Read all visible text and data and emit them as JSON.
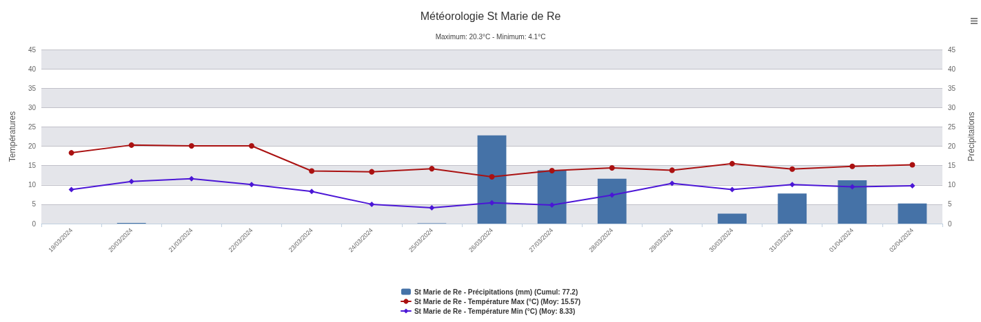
{
  "chart_data": {
    "type": "line",
    "title": "Météorologie St Marie de Re",
    "subtitle": "Maximum: 20.3°C - Minimum: 4.1°C",
    "ylabel": "Températures",
    "y2label": "Précipitations",
    "categories": [
      "19/03/2024",
      "20/03/2024",
      "21/03/2024",
      "22/03/2024",
      "23/03/2024",
      "24/03/2024",
      "25/03/2024",
      "26/03/2024",
      "27/03/2024",
      "28/03/2024",
      "29/03/2024",
      "30/03/2024",
      "31/03/2024",
      "01/04/2024",
      "02/04/2024"
    ],
    "series": [
      {
        "name": "St Marie de Re - Précipitations (mm) (Cumul: 77.2)",
        "type": "bar",
        "axis": "y2",
        "color": "#4572a7",
        "values": [
          0,
          0.2,
          0,
          0,
          0,
          0,
          0.1,
          22.8,
          13.8,
          11.6,
          0,
          2.6,
          7.8,
          11.2,
          5.2
        ]
      },
      {
        "name": "St Marie de Re - Température Max (°C) (Moy: 15.57)",
        "marker": "circle",
        "color": "#aa1111",
        "values": [
          18.3,
          20.3,
          20.1,
          20.1,
          13.6,
          13.4,
          14.2,
          12.1,
          13.7,
          14.4,
          13.8,
          15.5,
          14.1,
          14.8,
          15.2
        ]
      },
      {
        "name": "St Marie de Re - Température Min (°C) (Moy: 8.33)",
        "marker": "diamond",
        "color": "#4b16d6",
        "values": [
          8.8,
          10.9,
          11.6,
          10.1,
          8.3,
          5.0,
          4.1,
          5.4,
          4.8,
          7.4,
          10.4,
          8.8,
          10.1,
          9.5,
          9.8
        ]
      }
    ],
    "ylim": [
      0,
      45
    ],
    "yticks": [
      0,
      5,
      10,
      15,
      20,
      25,
      30,
      35,
      40,
      45
    ],
    "y2lim": [
      0,
      45
    ],
    "y2ticks": [
      0,
      5,
      10,
      15,
      20,
      25,
      30,
      35,
      40,
      45
    ],
    "grid": "y",
    "legend": "bottom"
  }
}
